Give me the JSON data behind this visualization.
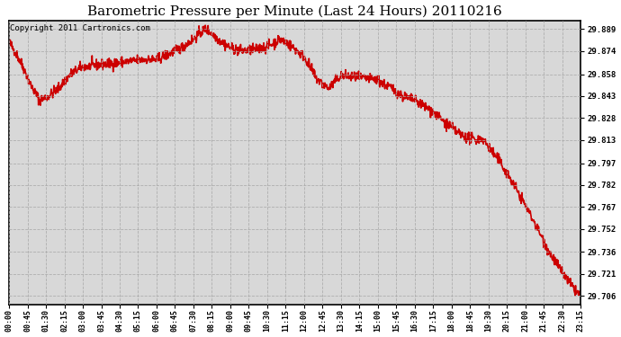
{
  "title": "Barometric Pressure per Minute (Last 24 Hours) 20110216",
  "copyright": "Copyright 2011 Cartronics.com",
  "line_color": "#cc0000",
  "bg_color": "#ffffff",
  "plot_bg_color": "#d8d8d8",
  "grid_color": "#aaaaaa",
  "title_fontsize": 11,
  "copyright_fontsize": 6.5,
  "ytick_labels": [
    29.706,
    29.721,
    29.736,
    29.752,
    29.767,
    29.782,
    29.797,
    29.813,
    29.828,
    29.843,
    29.858,
    29.874,
    29.889
  ],
  "xtick_labels": [
    "00:00",
    "00:45",
    "01:30",
    "02:15",
    "03:00",
    "03:45",
    "04:30",
    "05:15",
    "06:00",
    "06:45",
    "07:30",
    "08:15",
    "09:00",
    "09:45",
    "10:30",
    "11:15",
    "12:00",
    "12:45",
    "13:30",
    "14:15",
    "15:00",
    "15:45",
    "16:30",
    "17:15",
    "18:00",
    "18:45",
    "19:30",
    "20:15",
    "21:00",
    "21:45",
    "22:30",
    "23:15"
  ],
  "ylim": [
    29.7,
    29.895
  ],
  "control_t": [
    0,
    0.3,
    0.6,
    0.9,
    1.25,
    1.6,
    2.0,
    2.5,
    3.0,
    3.5,
    4.0,
    4.5,
    5.0,
    5.5,
    6.0,
    6.5,
    7.0,
    7.5,
    7.75,
    8.0,
    8.25,
    8.5,
    9.0,
    9.5,
    10.0,
    10.5,
    10.75,
    11.0,
    11.25,
    11.5,
    12.0,
    12.5,
    13.0,
    13.25,
    13.5,
    14.0,
    14.5,
    15.0,
    15.25,
    15.5,
    16.0,
    16.5,
    17.0,
    17.25,
    17.5,
    18.0,
    18.5,
    19.0,
    19.25,
    19.5,
    20.0,
    20.5,
    21.0,
    21.5,
    22.0,
    22.5,
    23.0,
    23.25
  ],
  "control_p": [
    29.88,
    29.872,
    29.862,
    29.85,
    29.84,
    29.843,
    29.848,
    29.858,
    29.863,
    29.864,
    29.865,
    29.866,
    29.867,
    29.868,
    29.868,
    29.872,
    29.876,
    29.882,
    29.886,
    29.889,
    29.886,
    29.882,
    29.876,
    29.874,
    29.875,
    29.877,
    29.879,
    29.882,
    29.88,
    29.877,
    29.87,
    29.855,
    29.848,
    29.853,
    29.857,
    29.856,
    29.855,
    29.854,
    29.851,
    29.849,
    29.843,
    29.84,
    29.835,
    29.832,
    29.828,
    29.821,
    29.815,
    29.813,
    29.814,
    29.808,
    29.797,
    29.783,
    29.768,
    29.752,
    29.735,
    29.722,
    29.71,
    29.706
  ],
  "noise_std": 0.0018,
  "seed": 42
}
